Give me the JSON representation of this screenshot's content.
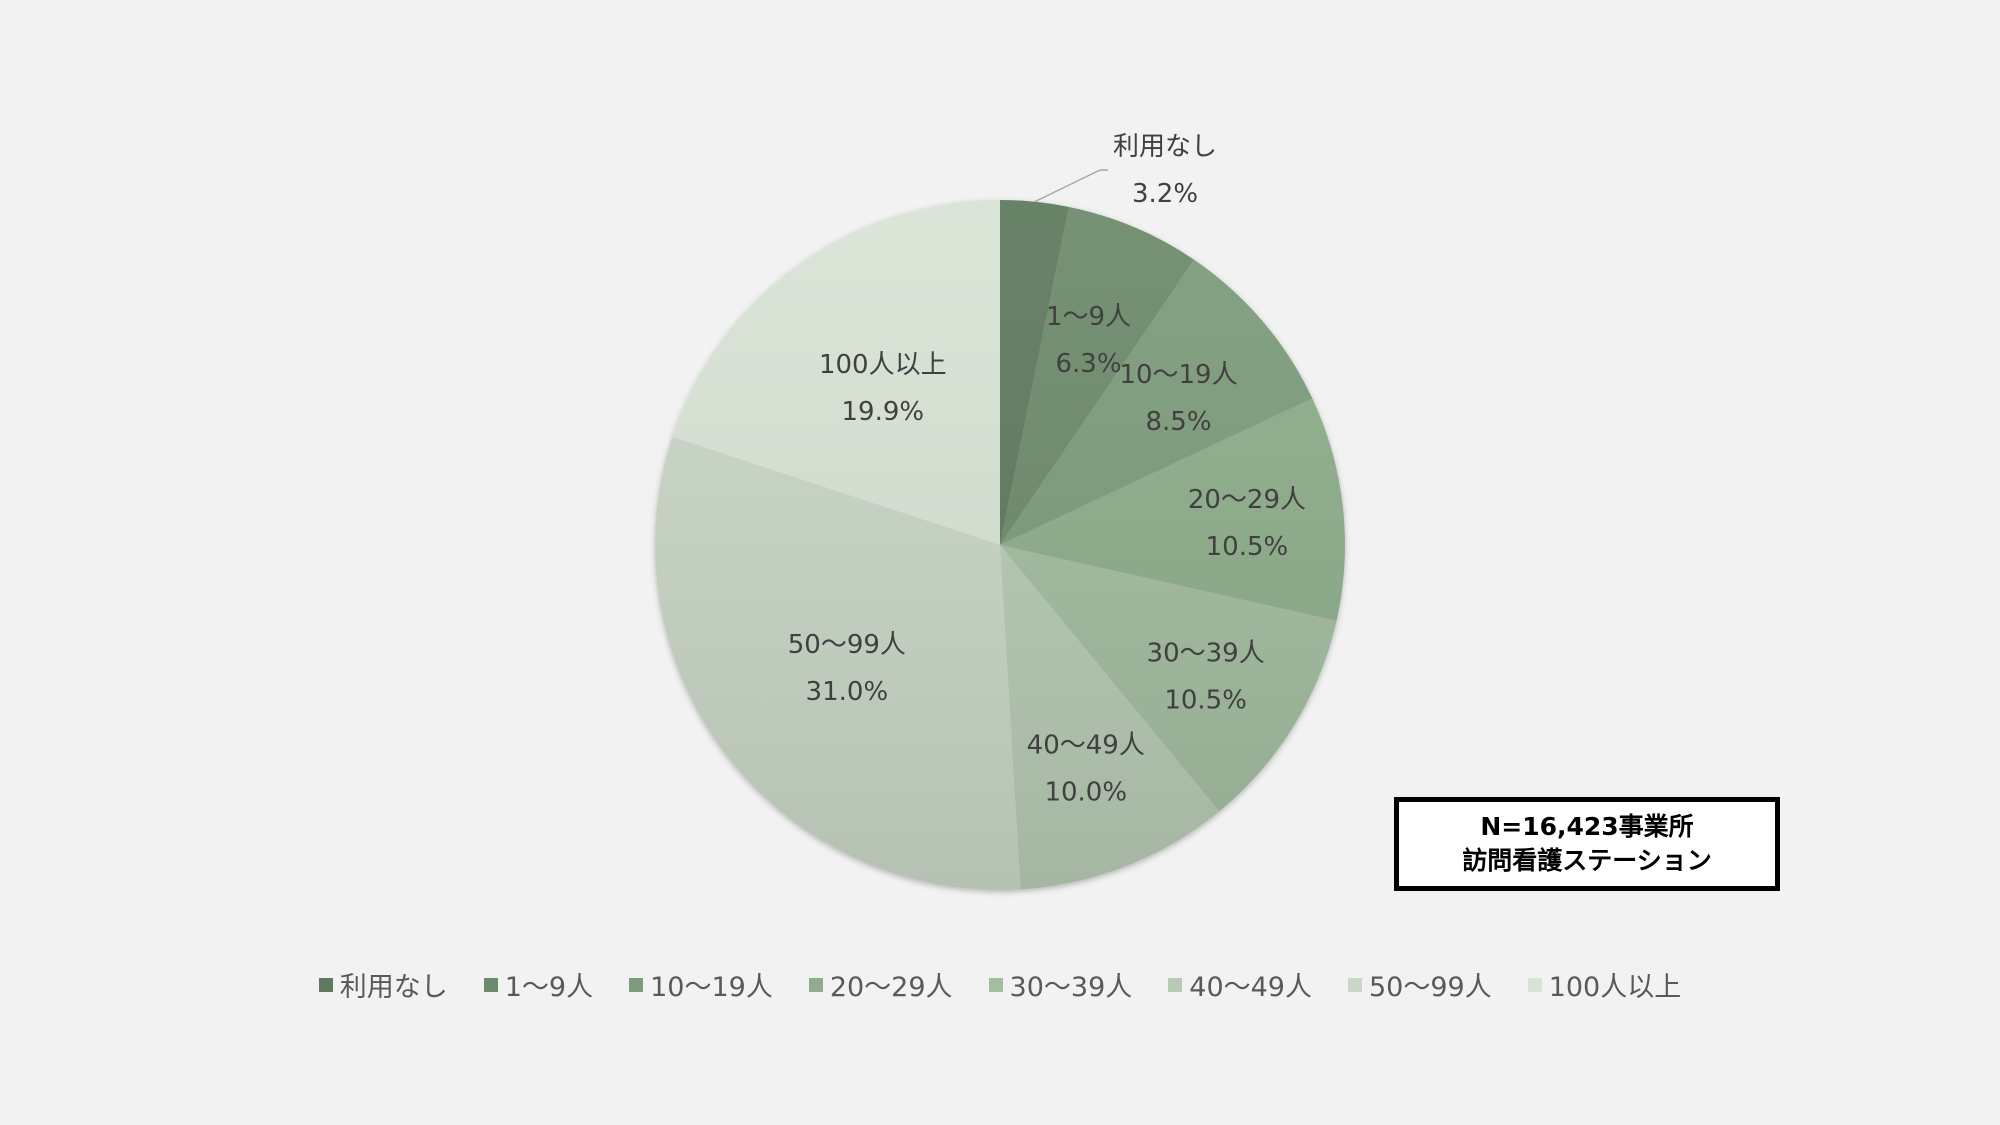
{
  "chart_data": {
    "type": "pie",
    "categories": [
      "利用なし",
      "1～9人",
      "10～19人",
      "20～29人",
      "30～39人",
      "40～49人",
      "50～99人",
      "100人以上"
    ],
    "values": [
      3.2,
      6.3,
      8.5,
      10.5,
      10.5,
      10.0,
      31.0,
      19.9
    ],
    "value_labels": [
      "3.2%",
      "6.3%",
      "8.5%",
      "10.5%",
      "10.5%",
      "10.0%",
      "31.0%",
      "19.9%"
    ],
    "colors": [
      "#5f7a5f",
      "#6e8a6c",
      "#7e9c7c",
      "#8eae8b",
      "#a3bda0",
      "#b7cbb4",
      "#c9d7c6",
      "#d8e3d5"
    ],
    "start_angle": "12 o'clock",
    "direction": "clockwise",
    "legend_position": "bottom",
    "grid": false
  },
  "note": {
    "line1": "N=16,423事業所",
    "line2": "訪問看護ステーション"
  }
}
